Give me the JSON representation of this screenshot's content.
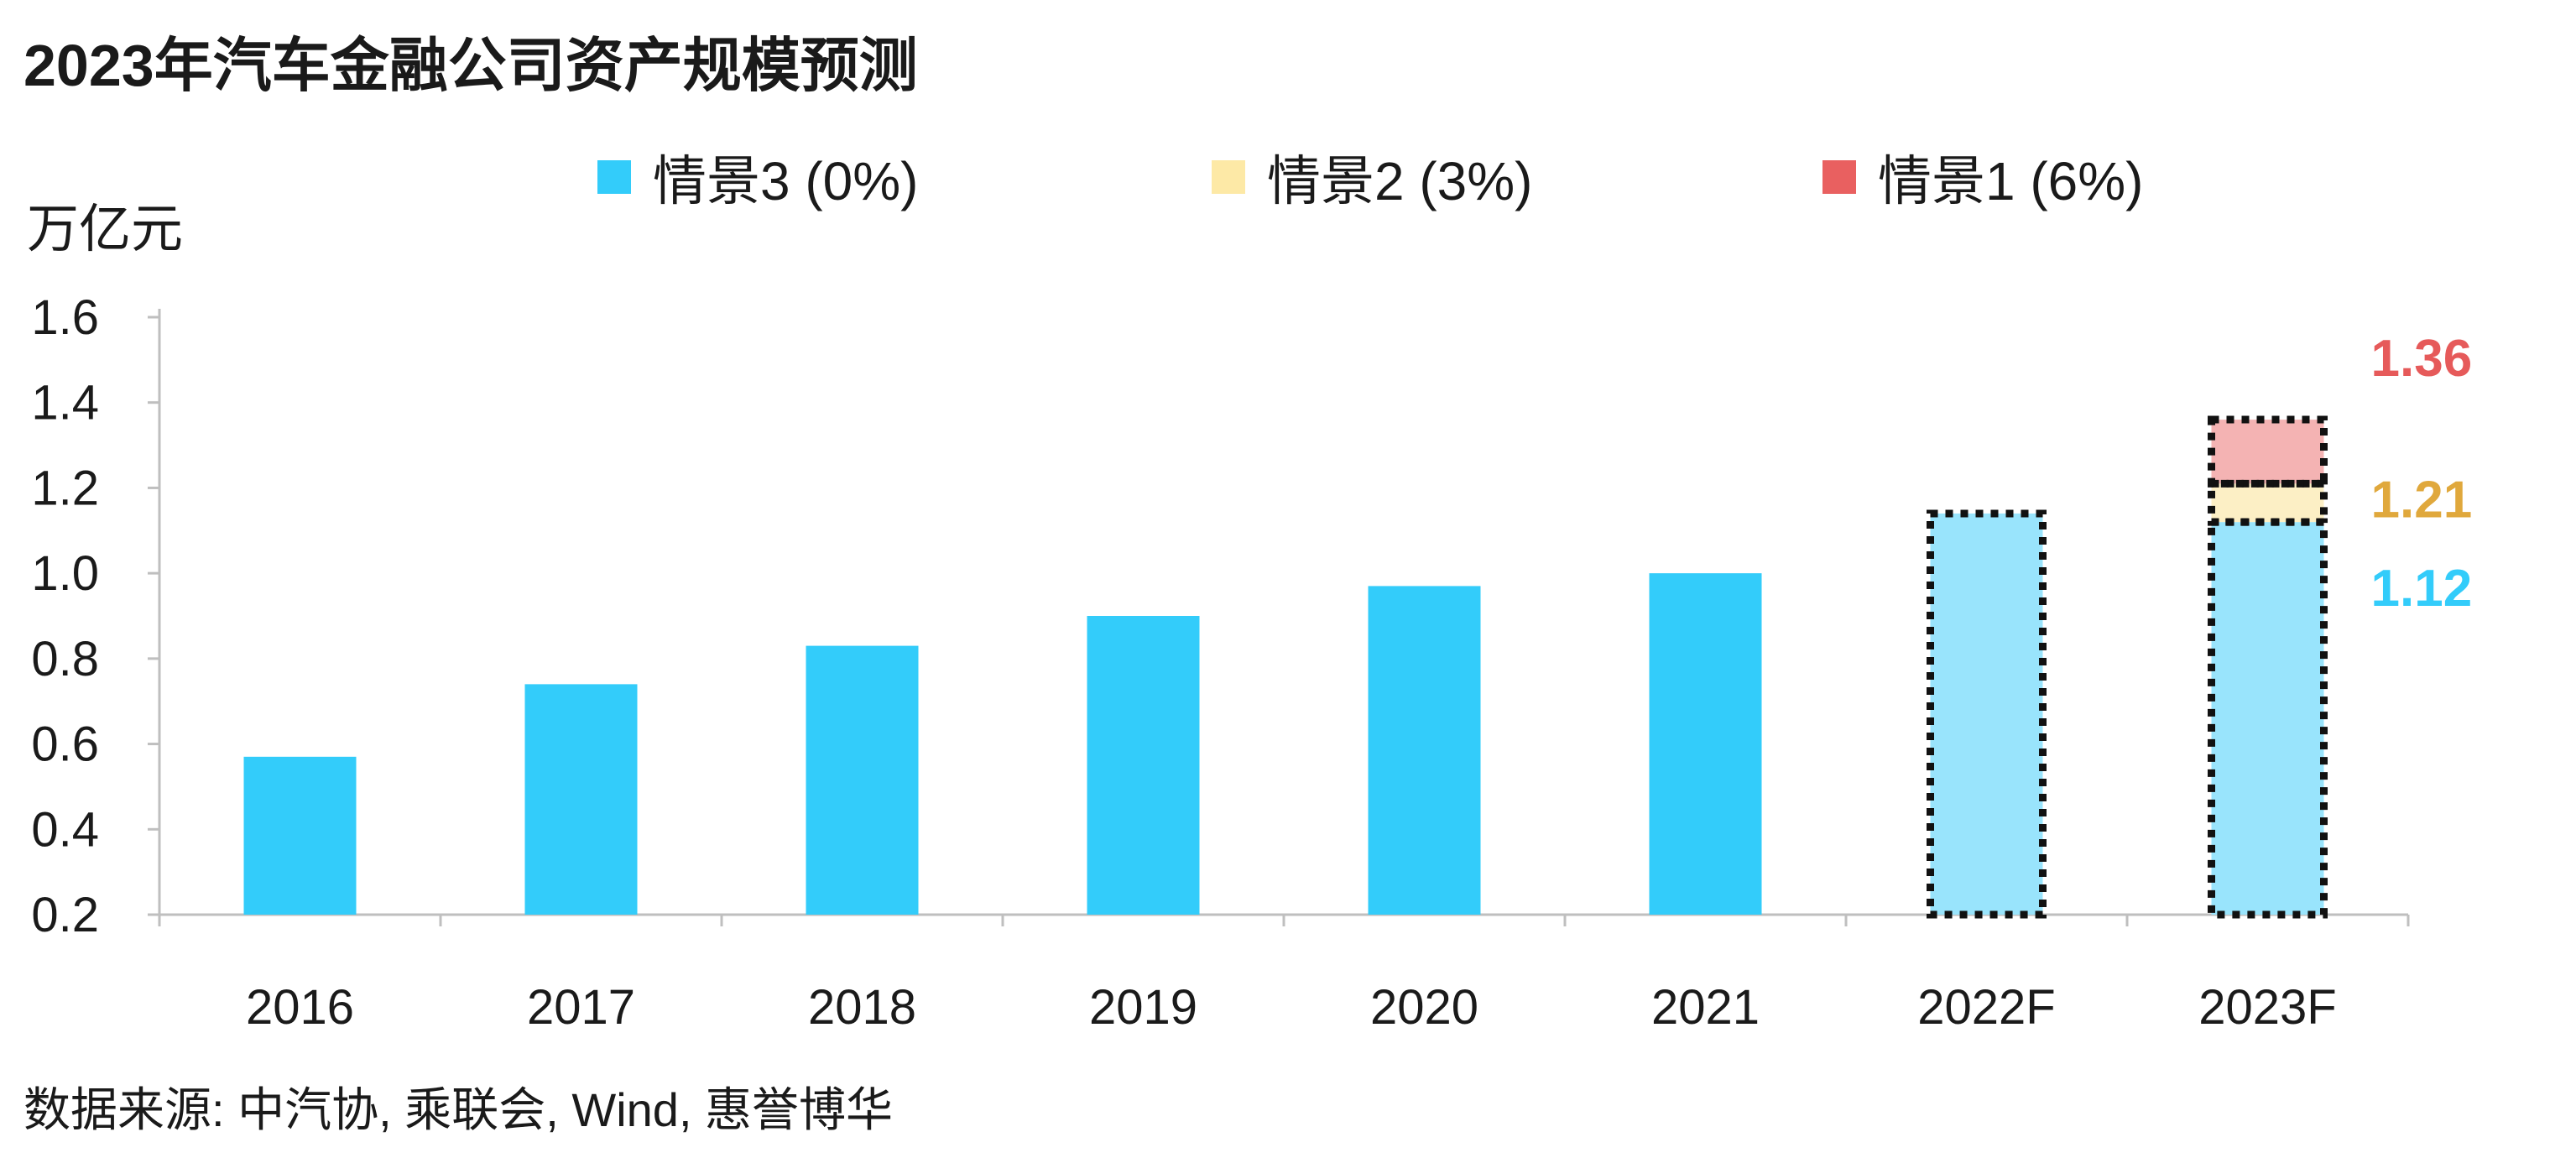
{
  "chart_data": {
    "type": "bar",
    "title": "2023年汽车金融公司资产规模预测",
    "ylabel": "万亿元",
    "xlabel": "",
    "ylim": [
      0.2,
      1.6
    ],
    "yticks": [
      "1.6",
      "1.4",
      "1.2",
      "1.0",
      "0.8",
      "0.6",
      "0.4",
      "0.2"
    ],
    "ytick_values": [
      1.6,
      1.4,
      1.2,
      1.0,
      0.8,
      0.6,
      0.4,
      0.2
    ],
    "categories": [
      "2016",
      "2017",
      "2018",
      "2019",
      "2020",
      "2021",
      "2022F",
      "2023F"
    ],
    "historical_values": [
      0.57,
      0.74,
      0.83,
      0.9,
      0.97,
      1.0,
      null,
      null
    ],
    "forecast_2022": 1.14,
    "forecast_2023": [
      {
        "name": "情景3 (0%)",
        "total": 1.12,
        "label": "1.12"
      },
      {
        "name": "情景2 (3%)",
        "total": 1.21,
        "label": "1.21"
      },
      {
        "name": "情景1 (6%)",
        "total": 1.36,
        "label": "1.36"
      }
    ],
    "legend": [
      {
        "name": "情景3 (0%)",
        "color": "#33ccfa"
      },
      {
        "name": "情景2 (3%)",
        "color": "#fde9a6"
      },
      {
        "name": "情景1 (6%)",
        "color": "#e96060"
      }
    ],
    "legend_position": "top",
    "grid": false,
    "colors": {
      "bar": "#33ccfa",
      "forecast_bar": "#99e4fc",
      "scenario2_fill": "#fcefc5",
      "scenario1_fill": "#f4b3b3",
      "label_scenario3": "#33ccfa",
      "label_scenario2": "#e0a83c",
      "label_scenario1": "#e65a5a",
      "axis": "#bfbfbf"
    }
  },
  "source": "数据来源: 中汽协, 乘联会, Wind, 惠誉博华"
}
